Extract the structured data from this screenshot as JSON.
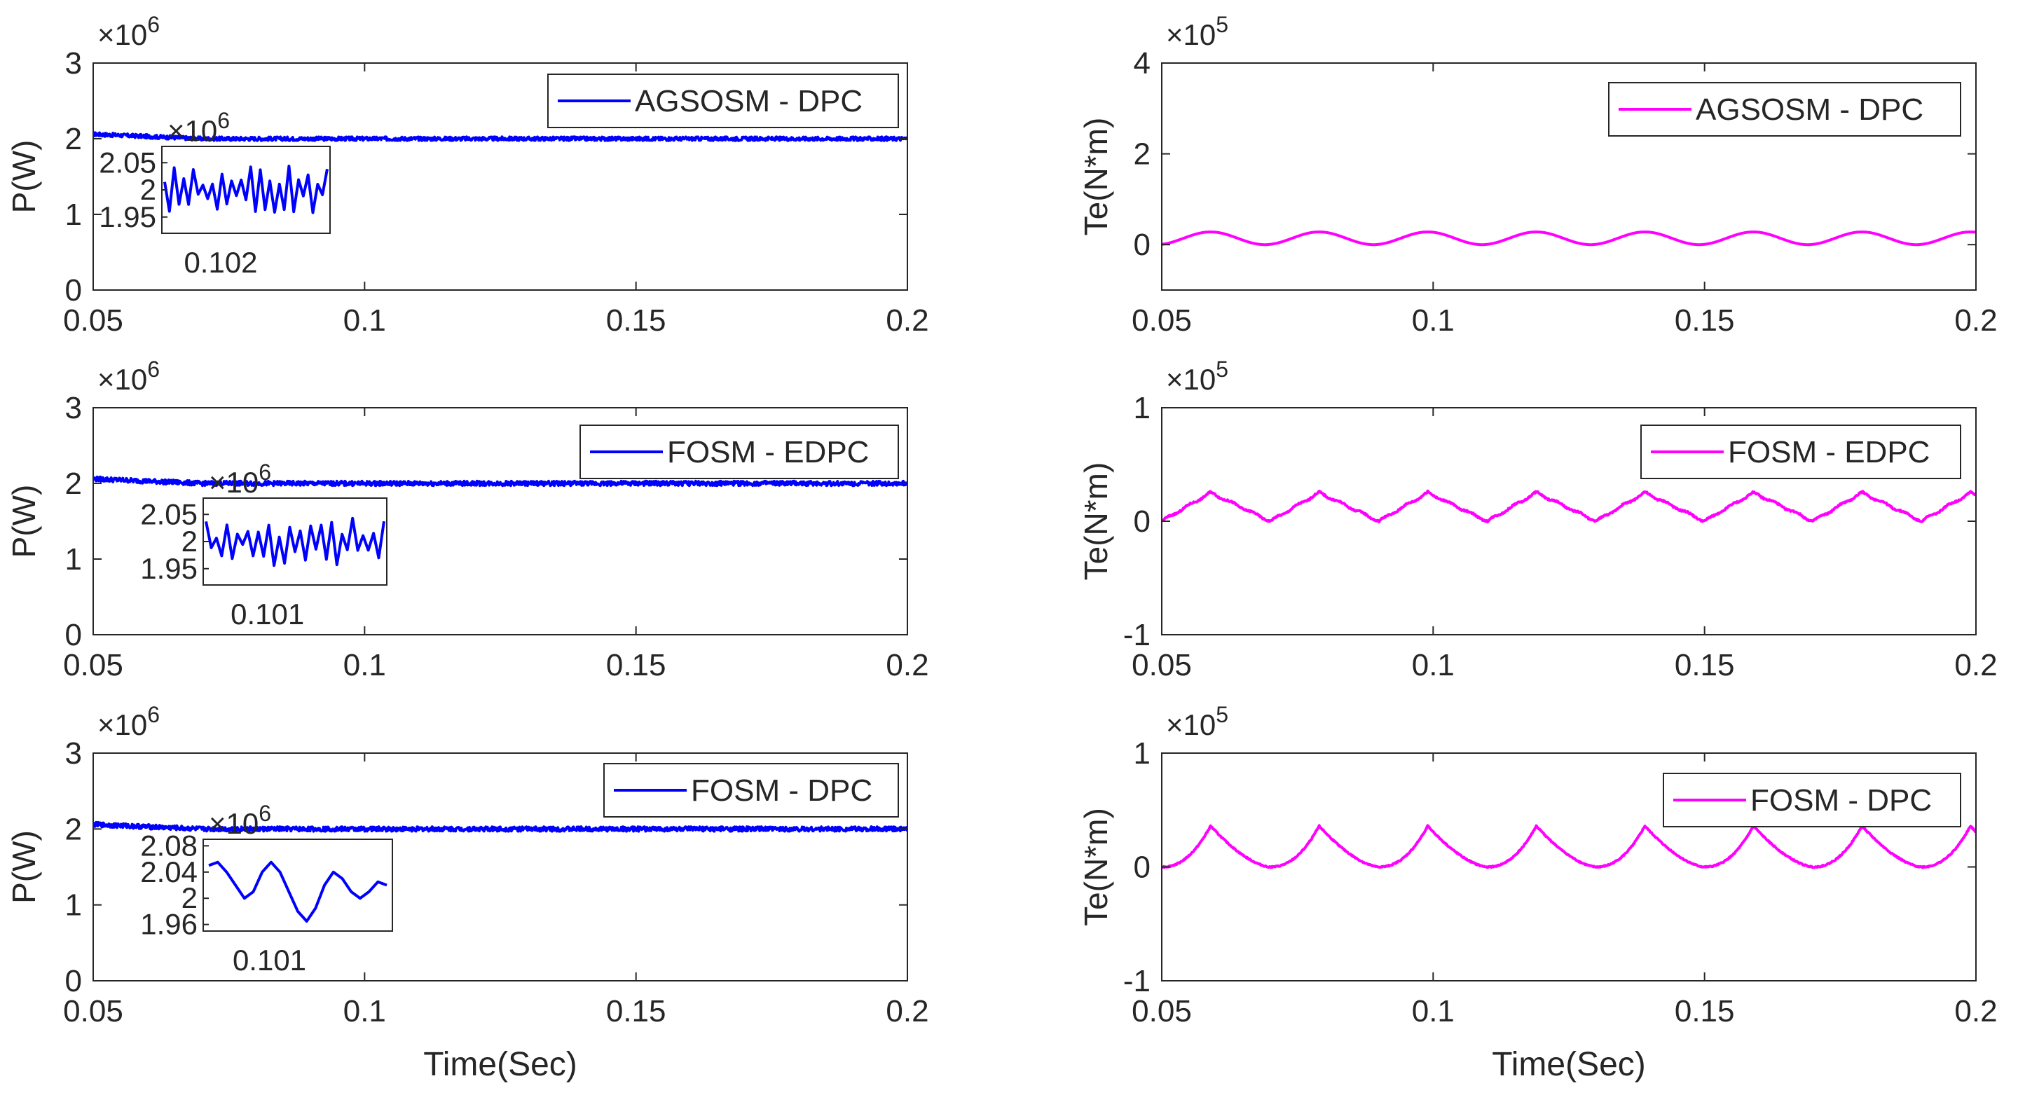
{
  "chart_data": [
    {
      "id": "p1",
      "type": "line",
      "ylabel": "P(W)",
      "xlabel": "",
      "exponent": "6",
      "xlim": [
        0.05,
        0.2
      ],
      "xticks": [
        "0.05",
        "0.1",
        "0.15",
        "0.2"
      ],
      "xtick_values": [
        0.05,
        0.1,
        0.15,
        0.2
      ],
      "ylim": [
        0,
        3
      ],
      "yticks": [
        "0",
        "1",
        "2",
        "3"
      ],
      "ytick_values": [
        0,
        1,
        2,
        3
      ],
      "series": [
        {
          "name": "AGSOSM - DPC",
          "color": "#0000ff",
          "level": 2.0,
          "ripple": 0.025,
          "shape": "noise"
        }
      ],
      "legend": {
        "label": "AGSOSM - DPC",
        "location": "top-right"
      },
      "inset": {
        "exponent": "6",
        "yticks": [
          "2.05",
          "2",
          "1.95"
        ],
        "ytick_values": [
          2.05,
          2.0,
          1.95
        ],
        "ylim": [
          1.92,
          2.08
        ],
        "xtick": "0.102",
        "shape": "zigzag"
      }
    },
    {
      "id": "t1",
      "type": "line",
      "ylabel": "Te(N*m)",
      "xlabel": "",
      "exponent": "5",
      "xlim": [
        0.05,
        0.2
      ],
      "xticks": [
        "0.05",
        "0.1",
        "0.15",
        "0.2"
      ],
      "xtick_values": [
        0.05,
        0.1,
        0.15,
        0.2
      ],
      "ylim": [
        -1,
        4
      ],
      "yticks": [
        "0",
        "2",
        "4"
      ],
      "ytick_values": [
        0,
        2,
        4
      ],
      "series": [
        {
          "name": "AGSOSM - DPC",
          "color": "#ff00ff",
          "min": 0.0,
          "max": 0.28,
          "period": 0.02,
          "peak_phase": 0.45,
          "shape": "smooth"
        }
      ],
      "legend": {
        "label": "AGSOSM - DPC",
        "location": "top-right"
      }
    },
    {
      "id": "p2",
      "type": "line",
      "ylabel": "P(W)",
      "xlabel": "",
      "exponent": "6",
      "xlim": [
        0.05,
        0.2
      ],
      "xticks": [
        "0.05",
        "0.1",
        "0.15",
        "0.2"
      ],
      "xtick_values": [
        0.05,
        0.1,
        0.15,
        0.2
      ],
      "ylim": [
        0,
        3
      ],
      "yticks": [
        "0",
        "1",
        "2",
        "3"
      ],
      "ytick_values": [
        0,
        1,
        2,
        3
      ],
      "series": [
        {
          "name": "FOSM - EDPC",
          "color": "#0000ff",
          "level": 2.0,
          "ripple": 0.03,
          "shape": "noise"
        }
      ],
      "legend": {
        "label": "FOSM - EDPC",
        "location": "top-right"
      },
      "inset": {
        "exponent": "6",
        "yticks": [
          "2.05",
          "2",
          "1.95"
        ],
        "ytick_values": [
          2.05,
          2.0,
          1.95
        ],
        "ylim": [
          1.92,
          2.08
        ],
        "xtick": "0.101",
        "shape": "zigzag"
      }
    },
    {
      "id": "t2",
      "type": "line",
      "ylabel": "Te(N*m)",
      "xlabel": "",
      "exponent": "5",
      "xlim": [
        0.05,
        0.2
      ],
      "xticks": [
        "0.05",
        "0.1",
        "0.15",
        "0.2"
      ],
      "xtick_values": [
        0.05,
        0.1,
        0.15,
        0.2
      ],
      "ylim": [
        -1,
        1
      ],
      "yticks": [
        "-1",
        "0",
        "1"
      ],
      "ytick_values": [
        -1,
        0,
        1
      ],
      "series": [
        {
          "name": "FOSM - EDPC",
          "color": "#ff00ff",
          "min": 0.0,
          "max": 0.28,
          "period": 0.02,
          "peak_phase": 0.45,
          "shape": "triangle"
        }
      ],
      "legend": {
        "label": "FOSM - EDPC",
        "location": "top-right"
      }
    },
    {
      "id": "p3",
      "type": "line",
      "ylabel": "P(W)",
      "xlabel": "Time(Sec)",
      "exponent": "6",
      "xlim": [
        0.05,
        0.2
      ],
      "xticks": [
        "0.05",
        "0.1",
        "0.15",
        "0.2"
      ],
      "xtick_values": [
        0.05,
        0.1,
        0.15,
        0.2
      ],
      "ylim": [
        0,
        3
      ],
      "yticks": [
        "0",
        "1",
        "2",
        "3"
      ],
      "ytick_values": [
        0,
        1,
        2,
        3
      ],
      "series": [
        {
          "name": "FOSM - DPC",
          "color": "#0000ff",
          "level": 2.0,
          "ripple": 0.03,
          "shape": "noise"
        }
      ],
      "legend": {
        "label": "FOSM - DPC",
        "location": "top-right"
      },
      "inset": {
        "exponent": "6",
        "yticks": [
          "2.08",
          "2.04",
          "2",
          "1.96"
        ],
        "ytick_values": [
          2.08,
          2.04,
          2.0,
          1.96
        ],
        "ylim": [
          1.95,
          2.09
        ],
        "xtick": "0.101",
        "shape": "wave"
      }
    },
    {
      "id": "t3",
      "type": "line",
      "ylabel": "Te(N*m)",
      "xlabel": "Time(Sec)",
      "exponent": "5",
      "xlim": [
        0.05,
        0.2
      ],
      "xticks": [
        "0.05",
        "0.1",
        "0.15",
        "0.2"
      ],
      "xtick_values": [
        0.05,
        0.1,
        0.15,
        0.2
      ],
      "ylim": [
        -1,
        1
      ],
      "yticks": [
        "-1",
        "0",
        "1"
      ],
      "ytick_values": [
        -1,
        0,
        1
      ],
      "series": [
        {
          "name": "FOSM - DPC",
          "color": "#ff00ff",
          "min": 0.0,
          "max": 0.36,
          "period": 0.02,
          "peak_phase": 0.45,
          "shape": "spike"
        }
      ],
      "legend": {
        "label": "FOSM - DPC",
        "location": "top-right"
      }
    }
  ]
}
